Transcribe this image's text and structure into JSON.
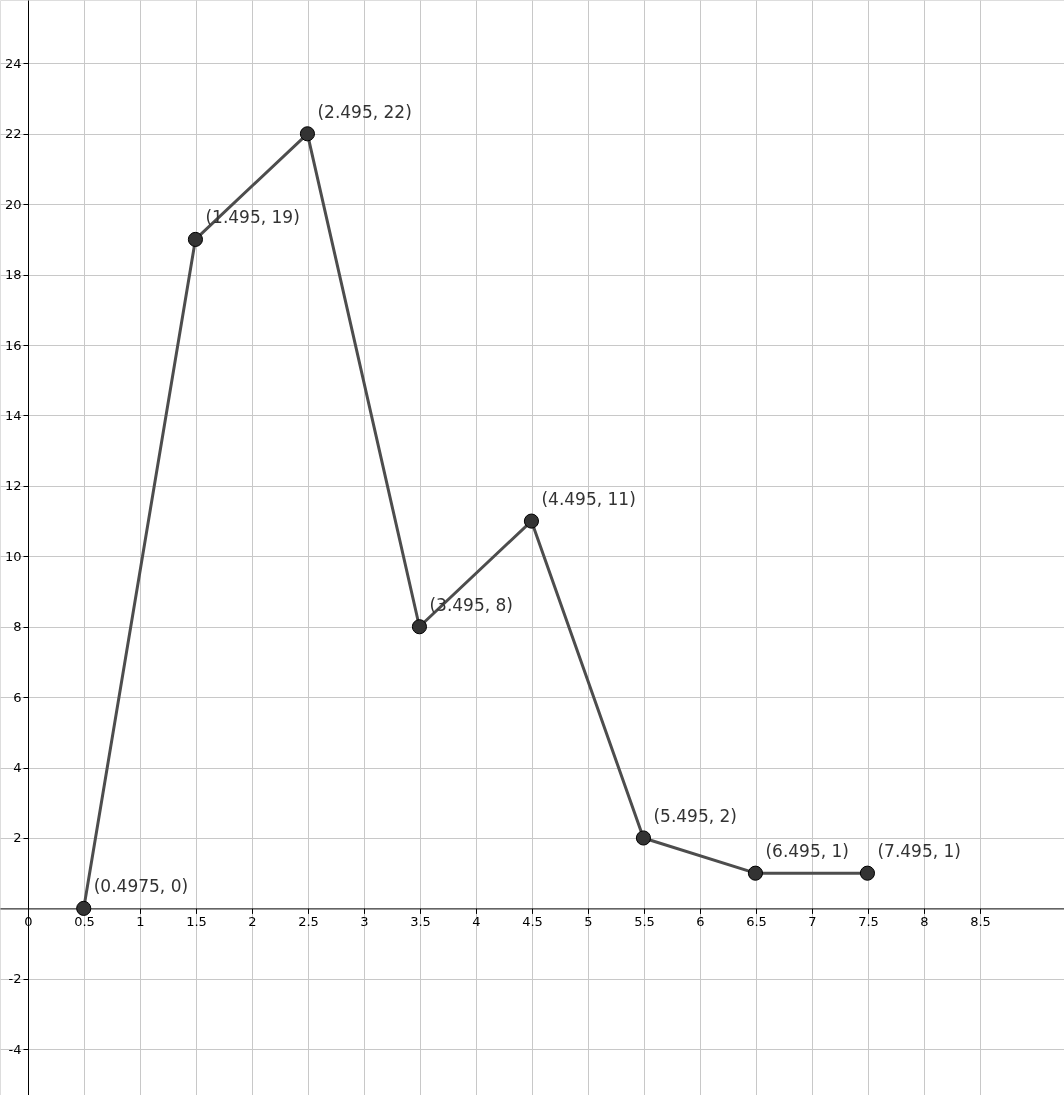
{
  "chart_data": {
    "type": "line",
    "x": [
      0.4975,
      1.495,
      2.495,
      3.495,
      4.495,
      5.495,
      6.495,
      7.495
    ],
    "series": [
      {
        "color": "#4d4d4d",
        "values": [
          0,
          19,
          22,
          8,
          11,
          2,
          1,
          1
        ],
        "value_labels": [
          "(0.4975, 0)",
          "(1.495, 19)",
          "(2.495, 22)",
          "(3.495, 8)",
          "(4.495, 11)",
          "(5.495, 2)",
          "(6.495, 1)",
          "(7.495, 1)"
        ]
      }
    ],
    "xlim": [
      -0.25,
      9.25
    ],
    "ylim": [
      -5.3,
      25.8
    ],
    "xticks": [
      0,
      0.5,
      1,
      1.5,
      2,
      2.5,
      3,
      3.5,
      4,
      4.5,
      5,
      5.5,
      6,
      6.5,
      7,
      7.5,
      8,
      8.5
    ],
    "yticks": [
      -4,
      -2,
      2,
      4,
      6,
      8,
      10,
      12,
      14,
      16,
      18,
      20,
      22,
      24
    ],
    "grid": true,
    "marker": "circle",
    "line_style": "solid"
  }
}
